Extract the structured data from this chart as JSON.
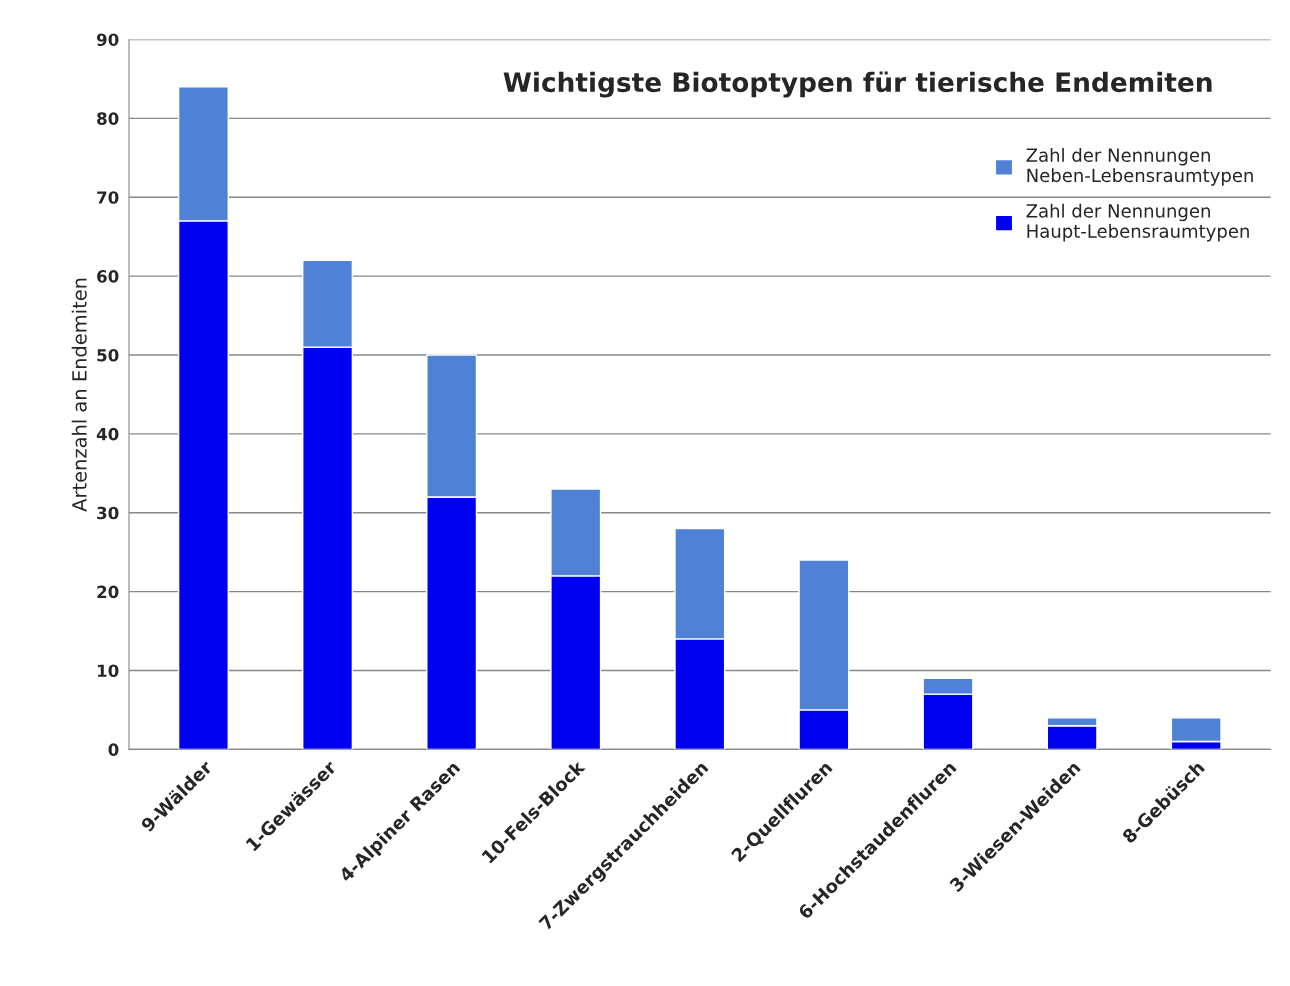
{
  "chart_data": {
    "type": "bar",
    "title": "Wichtigste Biotoptypen für tierische Endemiten",
    "ylabel": "Artenzahl an Endemiten",
    "categories": [
      "9-Wälder",
      "1-Gewässer",
      "4-Alpiner Rasen",
      "10-Fels-Block",
      "7-Zwergstrauchheiden",
      "2-Quellfluren",
      "6-Hochstaudenfluren",
      "3-Wiesen-Weiden",
      "8-Gebüsch"
    ],
    "series": [
      {
        "name": "Zahl der Nennungen\nHaupt-Lebensraumtypen",
        "color": "#0000f0",
        "values": [
          67,
          51,
          32,
          22,
          14,
          5,
          7,
          3,
          1
        ]
      },
      {
        "name": "Zahl der Nennungen\nNeben-Lebensraumtypen",
        "color": "#4f81d6",
        "values": [
          17,
          11,
          18,
          11,
          14,
          19,
          2,
          1,
          3
        ]
      }
    ],
    "stacked": true,
    "ylim": [
      0,
      90
    ],
    "yticks": [
      0,
      10,
      20,
      30,
      40,
      50,
      60,
      70,
      80,
      90
    ],
    "grid": "y",
    "legend": "top right"
  }
}
